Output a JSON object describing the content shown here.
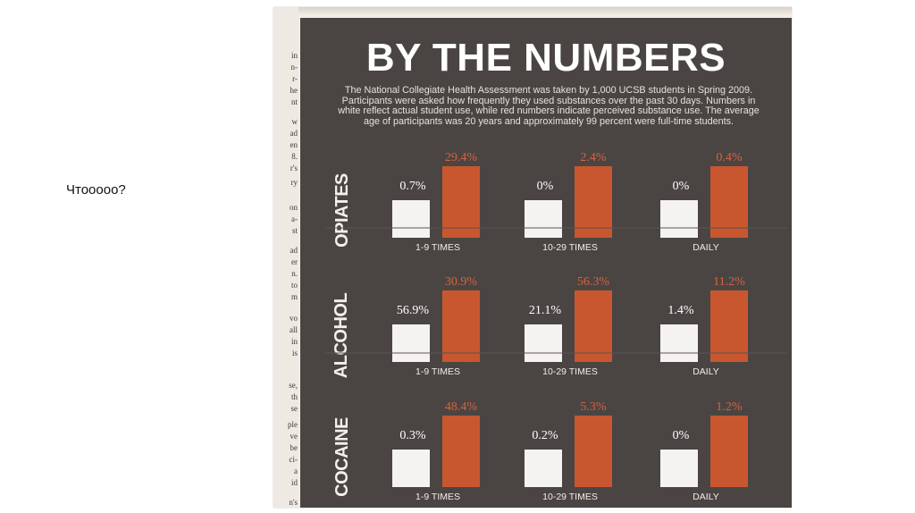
{
  "caption": "Чтооооо?",
  "chart_data": {
    "type": "bar",
    "title": "BY THE NUMBERS",
    "subtitle": "The National Collegiate Health Assessment was taken by 1,000 UCSB students in Spring 2009. Participants were asked how frequently they used substances over the past 30 days. Numbers in white reflect actual student use, while red numbers indicate perceived substance use. The average age of participants was 20 years and approximately 99 percent were full-time students.",
    "categories": [
      "1-9 TIMES",
      "10-29 TIMES",
      "DAILY"
    ],
    "series_colors": {
      "actual": "#f4f3f1",
      "perceived": "#c8572f"
    },
    "panels": [
      {
        "substance": "OPIATES",
        "actual": [
          0.7,
          0,
          0
        ],
        "perceived": [
          29.4,
          2.4,
          0.4
        ],
        "actual_labels": [
          "0.7%",
          "0%",
          "0%"
        ],
        "perceived_labels": [
          "29.4%",
          "2.4%",
          "0.4%"
        ]
      },
      {
        "substance": "ALCOHOL",
        "actual": [
          56.9,
          21.1,
          1.4
        ],
        "perceived": [
          30.9,
          56.3,
          11.2
        ],
        "actual_labels": [
          "56.9%",
          "21.1%",
          "1.4%"
        ],
        "perceived_labels": [
          "30.9%",
          "56.3%",
          "11.2%"
        ]
      },
      {
        "substance": "COCAINE",
        "actual": [
          0.3,
          0.2,
          0
        ],
        "perceived": [
          48.4,
          5.3,
          1.2
        ],
        "actual_labels": [
          "0.3%",
          "0.2%",
          "0%"
        ],
        "perceived_labels": [
          "48.4%",
          "5.3%",
          "1.2%"
        ]
      }
    ]
  },
  "margin_text": [
    "in",
    "n-",
    "r-",
    "he",
    "nt",
    "w",
    "ad",
    "en",
    "8.",
    "r's",
    "ry",
    "on",
    "a-",
    "st",
    "ad",
    "er",
    "n.",
    "to",
    "m",
    "vo",
    "all",
    "in",
    "is",
    "se,",
    "th",
    "se",
    "ple",
    "ve",
    "be",
    "ci-",
    "a",
    "id",
    "n's"
  ]
}
